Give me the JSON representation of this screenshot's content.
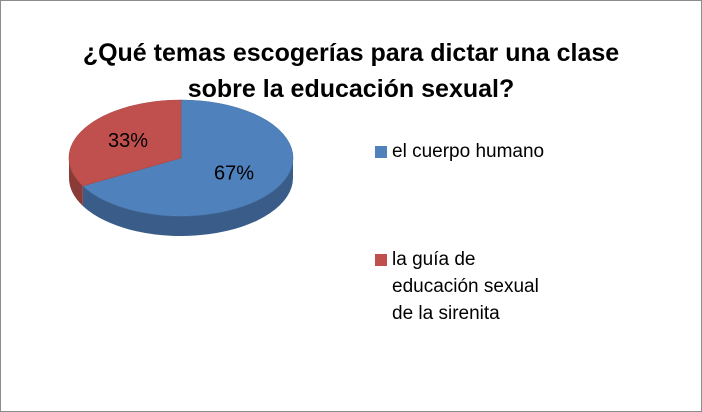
{
  "chart_data": {
    "type": "pie",
    "title": "¿Qué temas escogerías para dictar una clase sobre la educación sexual?",
    "categories": [
      "el cuerpo humano",
      "la guía de educación sexual de la sirenita"
    ],
    "values": [
      67,
      33
    ],
    "value_labels": [
      "67%",
      "33%"
    ],
    "colors": [
      "#4f81bd",
      "#c0504d"
    ],
    "legend": "right"
  }
}
